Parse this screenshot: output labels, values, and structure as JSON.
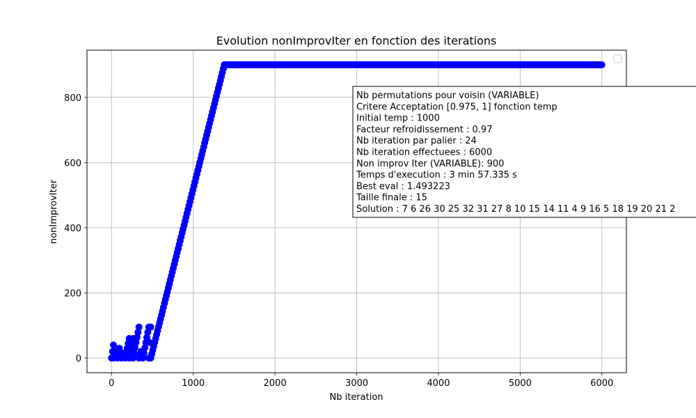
{
  "chart_data": {
    "type": "scatter",
    "title": "Evolution nonImprovIter en fonction des iterations",
    "xlabel": "Nb iteration",
    "ylabel": "nonImprovIter",
    "xlim": [
      -300,
      6300
    ],
    "ylim": [
      -45,
      945
    ],
    "x_ticks": [
      0,
      1000,
      2000,
      3000,
      4000,
      5000,
      6000
    ],
    "y_ticks": [
      0,
      200,
      400,
      600,
      800
    ],
    "grid": true,
    "legend": {
      "placement": "top-right",
      "entries": []
    },
    "marker_color": "#0000ff",
    "series": [
      {
        "segments": [
          [
            0,
            0,
            24,
            40
          ],
          [
            24,
            0,
            48,
            20
          ],
          [
            72,
            0,
            96,
            30
          ],
          [
            120,
            0,
            144,
            15
          ],
          [
            168,
            0,
            216,
            60
          ],
          [
            216,
            0,
            264,
            60
          ],
          [
            264,
            0,
            336,
            95
          ],
          [
            336,
            0,
            360,
            20
          ],
          [
            384,
            0,
            456,
            95
          ],
          [
            456,
            0,
            480,
            95
          ],
          [
            480,
            0,
            1380,
            900
          ],
          [
            1380,
            900,
            6000,
            900
          ]
        ]
      }
    ],
    "annotation": {
      "lines": [
        "Nb permutations pour voisin (VARIABLE)",
        "Critere Acceptation [0.975, 1] fonction temp",
        "Initial temp : 1000",
        "Facteur refroidissement : 0.97",
        "Nb iteration par palier : 24",
        "Nb iteration effectuees : 6000",
        "Non improv Iter (VARIABLE): 900",
        "Temps d'execution : 3 min 57.335 s",
        "Best eval : 1.493223",
        "Taille finale : 15",
        "Solution : 7 6 26 30 25 32 31 27 8 10 15 14 11 4 9 16 5 18 19 20 21 2"
      ]
    }
  }
}
